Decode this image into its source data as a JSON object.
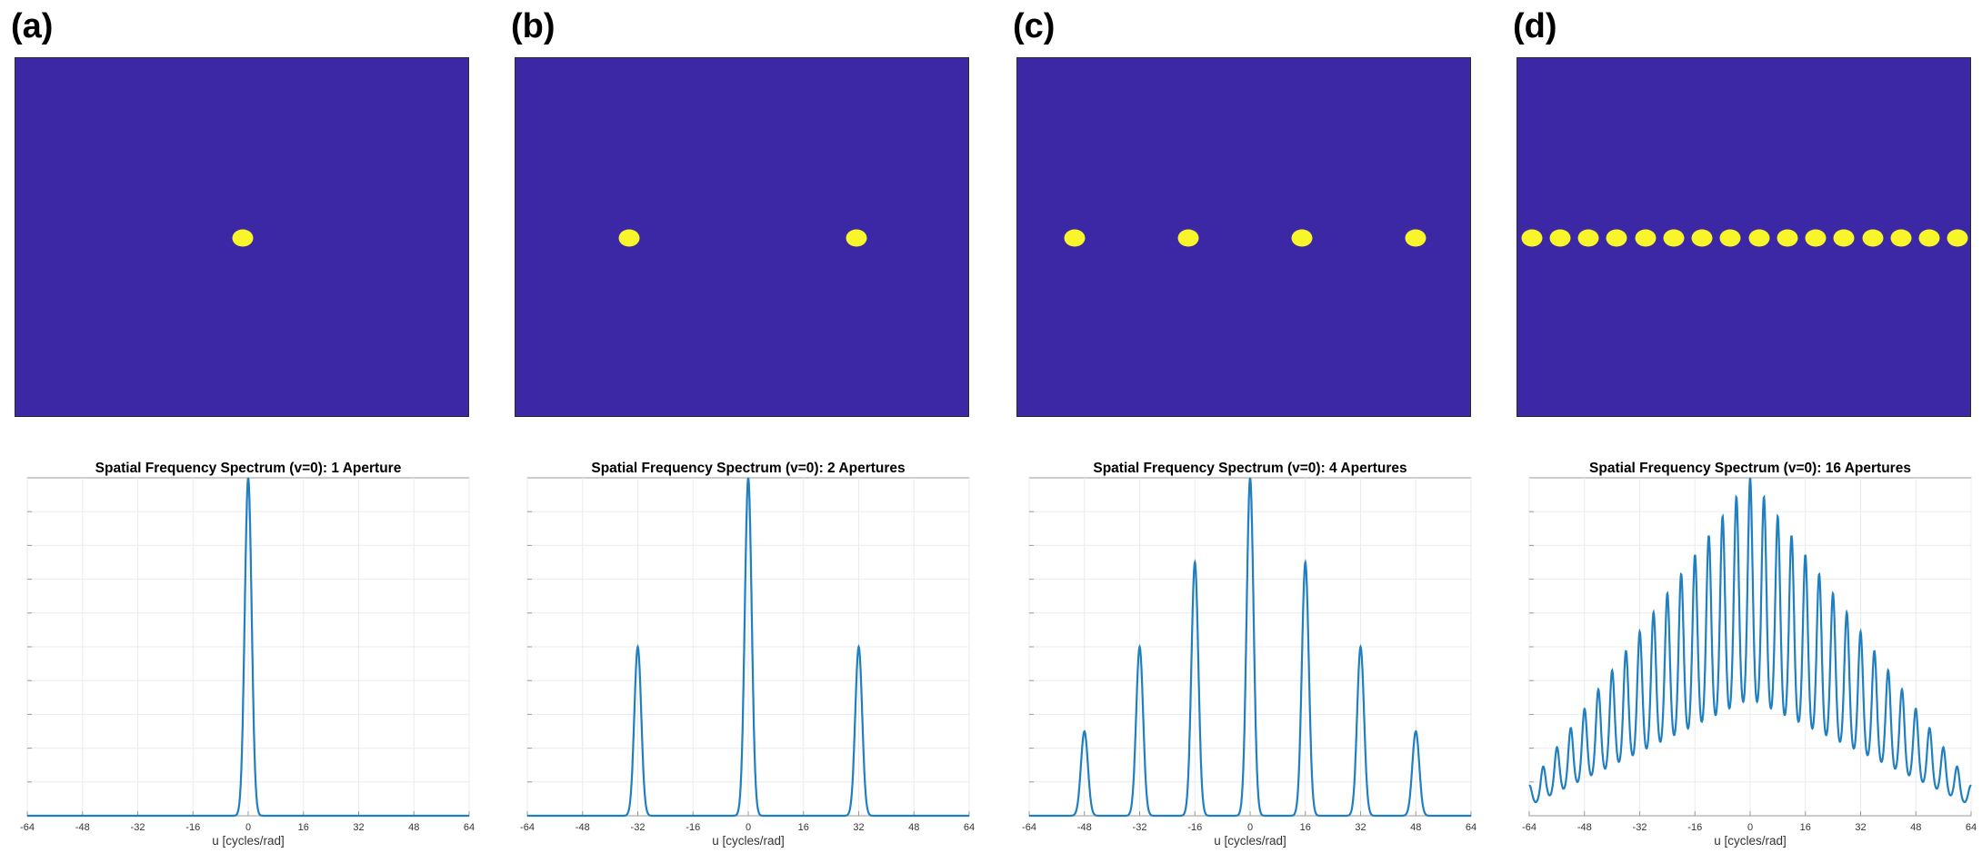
{
  "colors": {
    "background_plane": "#3c27a4",
    "aperture": "#f8f52a",
    "line": "#1f7fc1"
  },
  "panels": [
    {
      "label": "(a)",
      "aperture_count": 1,
      "chart_data": {
        "type": "line",
        "title": "Spatial Frequency Spectrum (v=0): 1 Aperture",
        "xlabel": "u [cycles/rad]",
        "ylabel": "",
        "xlim": [
          -64,
          64
        ],
        "ylim": [
          0,
          1
        ],
        "xticks": [
          "-64",
          "-48",
          "-32",
          "-16",
          "0",
          "16",
          "32",
          "48",
          "64"
        ],
        "grid": true,
        "series": [
          {
            "type": "peaks",
            "spacing": 32,
            "width": 1.0,
            "envelope": [
              {
                "x": 0,
                "y": 1.0
              }
            ]
          }
        ]
      }
    },
    {
      "label": "(b)",
      "aperture_count": 2,
      "chart_data": {
        "type": "line",
        "title": "Spatial Frequency Spectrum (v=0): 2 Apertures",
        "xlabel": "u [cycles/rad]",
        "ylabel": "",
        "xlim": [
          -64,
          64
        ],
        "ylim": [
          0,
          1
        ],
        "xticks": [
          "-64",
          "-48",
          "-32",
          "-16",
          "0",
          "16",
          "32",
          "48",
          "64"
        ],
        "grid": true,
        "series": [
          {
            "type": "peaks",
            "width": 1.0,
            "envelope": [
              {
                "x": -32,
                "y": 0.5
              },
              {
                "x": 0,
                "y": 1.0
              },
              {
                "x": 32,
                "y": 0.5
              }
            ]
          }
        ]
      }
    },
    {
      "label": "(c)",
      "aperture_count": 4,
      "chart_data": {
        "type": "line",
        "title": "Spatial Frequency Spectrum (v=0): 4 Apertures",
        "xlabel": "u [cycles/rad]",
        "ylabel": "",
        "xlim": [
          -64,
          64
        ],
        "ylim": [
          0,
          1
        ],
        "xticks": [
          "-64",
          "-48",
          "-32",
          "-16",
          "0",
          "16",
          "32",
          "48",
          "64"
        ],
        "grid": true,
        "series": [
          {
            "type": "peaks",
            "width": 1.0,
            "envelope": [
              {
                "x": -48,
                "y": 0.25
              },
              {
                "x": -32,
                "y": 0.5
              },
              {
                "x": -16,
                "y": 0.75
              },
              {
                "x": 0,
                "y": 1.0
              },
              {
                "x": 16,
                "y": 0.75
              },
              {
                "x": 32,
                "y": 0.5
              },
              {
                "x": 48,
                "y": 0.25
              }
            ]
          }
        ]
      }
    },
    {
      "label": "(d)",
      "aperture_count": 16,
      "chart_data": {
        "type": "line",
        "title": "Spatial Frequency Spectrum (v=0): 16 Apertures",
        "xlabel": "u [cycles/rad]",
        "ylabel": "",
        "xlim": [
          -64,
          64
        ],
        "ylim": [
          0,
          1
        ],
        "xticks": [
          "-64",
          "-48",
          "-32",
          "-16",
          "0",
          "16",
          "32",
          "48",
          "64"
        ],
        "grid": true,
        "series": [
          {
            "type": "dense-peaks",
            "spacing": 4,
            "width": 0.8,
            "envelope_peak": 1.0,
            "envelope_edge": 0.06
          }
        ]
      }
    }
  ]
}
